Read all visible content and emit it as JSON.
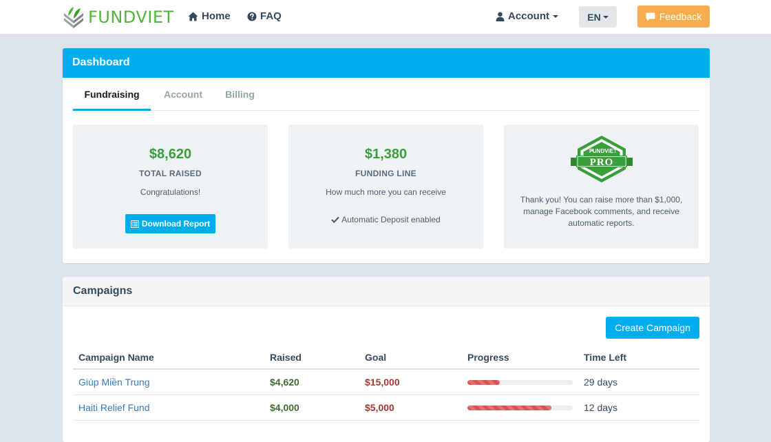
{
  "navbar": {
    "brand": "FUNDVIET",
    "home_label": "Home",
    "faq_label": "FAQ",
    "account_label": "Account",
    "language": "EN",
    "feedback_label": "Feedback",
    "colors": {
      "brand_green": "#52b53a",
      "feedback": "#f5ad4f"
    }
  },
  "dashboard": {
    "title": "Dashboard",
    "tabs": [
      {
        "label": "Fundraising",
        "active": true
      },
      {
        "label": "Account",
        "active": false
      },
      {
        "label": "Billing",
        "active": false
      }
    ],
    "cards": {
      "total": {
        "amount": "$8,620",
        "label": "TOTAL RAISED",
        "message": "Congratulations!",
        "button_label": "Download Report"
      },
      "funding": {
        "amount": "$1,380",
        "label": "FUNDING LINE",
        "message": "How much more you can receive",
        "deposit_text": "Automatic Deposit enabled"
      },
      "pro": {
        "badge_brand": "FUNDVIET",
        "badge_text": "PRO",
        "text": "Thank you! You can raise more than $1,000, manage Facebook comments, and receive automatic reports."
      }
    },
    "accent_color": "#00aeef"
  },
  "campaigns": {
    "title": "Campaigns",
    "create_label": "Create Campaign",
    "columns": [
      "Campaign Name",
      "Raised",
      "Goal",
      "Progress",
      "Time Left"
    ],
    "rows": [
      {
        "name": "Giúp Miền Trung",
        "raised": "$4,620",
        "goal": "$15,000",
        "progress": 0.308,
        "time_left": "29 days"
      },
      {
        "name": "Haiti Relief Fund",
        "raised": "$4,000",
        "goal": "$5,000",
        "progress": 0.8,
        "time_left": "12 days"
      }
    ]
  }
}
